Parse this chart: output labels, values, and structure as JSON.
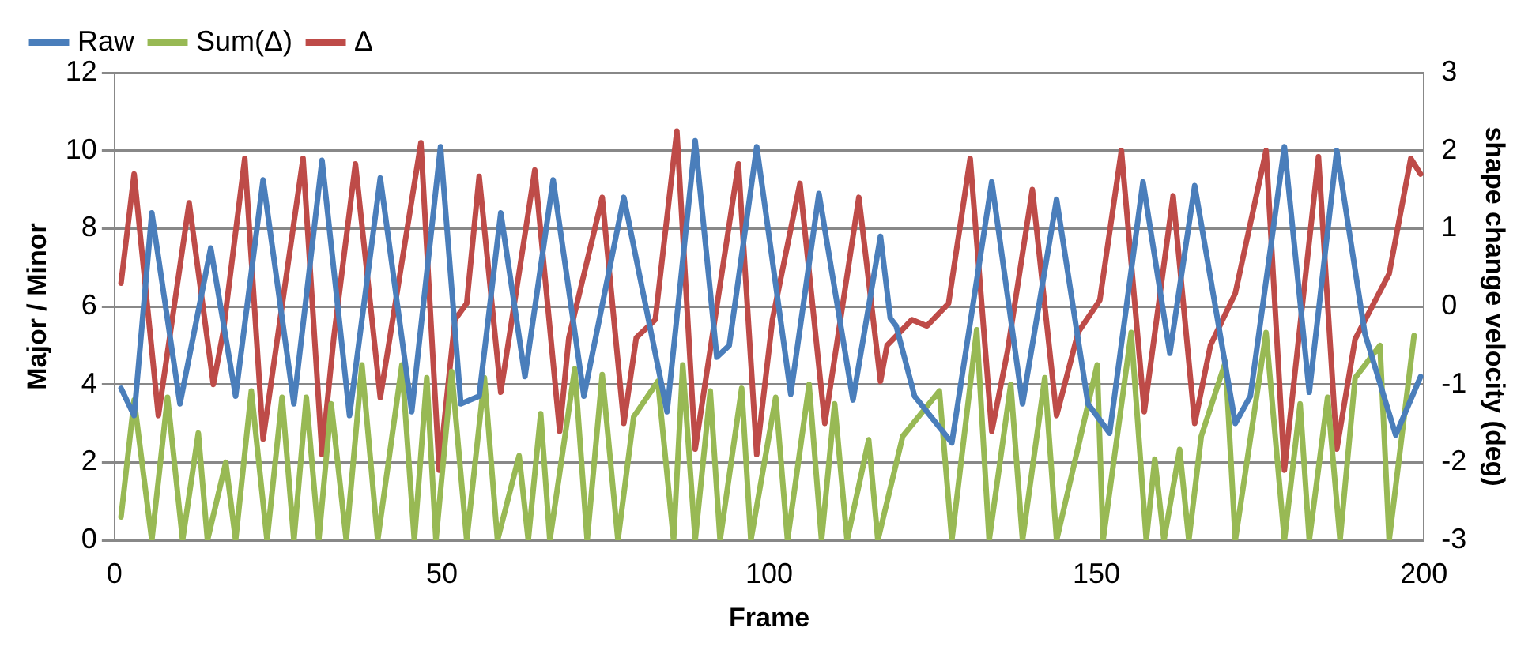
{
  "chart_data": {
    "type": "line",
    "xlabel": "Frame",
    "ylabel": "Major / Minor",
    "y2label": "shape change velocity (deg)",
    "xlim": [
      0,
      200
    ],
    "xticks": [
      0,
      50,
      100,
      150,
      200
    ],
    "ylim": [
      0,
      12
    ],
    "yticks": [
      0,
      2,
      4,
      6,
      8,
      10,
      12
    ],
    "y2lim": [
      -3,
      3
    ],
    "y2ticks": [
      -3,
      -2,
      -1,
      0,
      1,
      2,
      3
    ],
    "grid": "y",
    "legend": "top left",
    "marker": "none",
    "line_style": "solid",
    "series": [
      {
        "name": "Raw",
        "color": "#4a7ebb",
        "x": [
          1,
          3,
          5.7,
          10,
          14.7,
          18.5,
          22.7,
          27.4,
          31.7,
          35.9,
          40.6,
          45.4,
          49.8,
          52.9,
          55.7,
          59,
          62.7,
          67,
          71.7,
          77.8,
          84.4,
          88.7,
          92,
          93.9,
          98.1,
          103.3,
          107.6,
          112.8,
          117,
          118.5,
          119.4,
          122.2,
          127.9,
          134,
          138.7,
          143.9,
          148.7,
          152,
          157.1,
          161.2,
          165,
          171.2,
          173.5,
          178.7,
          182.5,
          186.7,
          191,
          195.7,
          199.5
        ],
        "values": [
          3.9,
          3.2,
          8.4,
          3.5,
          7.5,
          3.7,
          9.25,
          3.5,
          9.75,
          3.2,
          9.3,
          3.3,
          10.1,
          3.5,
          3.7,
          8.4,
          4.2,
          9.25,
          3.7,
          8.8,
          3.3,
          10.25,
          4.7,
          5,
          10.1,
          3.75,
          8.9,
          3.6,
          7.8,
          5.7,
          5.5,
          3.7,
          2.5,
          9.2,
          3.5,
          8.75,
          3.5,
          2.75,
          9.2,
          4.8,
          9.1,
          3,
          3.7,
          10.1,
          3.8,
          10,
          5.3,
          2.7,
          4.2
        ]
      },
      {
        "name": "Sum(Δ)",
        "color": "#98b954",
        "x": [
          1,
          3,
          5.7,
          8.1,
          10.4,
          12.8,
          14.2,
          17,
          18.5,
          20.9,
          23.3,
          25.6,
          27.4,
          29.3,
          31.2,
          33.1,
          35.4,
          37.8,
          40.2,
          43.9,
          45.8,
          47.7,
          49.1,
          51.5,
          53.8,
          56.5,
          58.5,
          61.8,
          63.2,
          65.1,
          66.5,
          70.3,
          72.2,
          74.5,
          76.9,
          79.3,
          83,
          85.4,
          86.8,
          88.7,
          91,
          92.5,
          95.8,
          97.2,
          101,
          102.8,
          106.1,
          108,
          110,
          111.9,
          115.2,
          116.6,
          120.4,
          126,
          127.9,
          131.7,
          133.6,
          136.9,
          138.7,
          142.1,
          143.9,
          150.1,
          151,
          155.3,
          157.6,
          158.9,
          160.3,
          162.7,
          164.1,
          166,
          169.7,
          171.2,
          175.9,
          178.7,
          181.1,
          182.5,
          185.3,
          187.2,
          189.5,
          193.3,
          194.7,
          198.5
        ],
        "values": [
          0.6,
          3.6,
          0,
          3.67,
          0,
          2.75,
          0,
          2,
          0,
          3.83,
          0,
          3.67,
          0,
          3.67,
          0,
          3.5,
          0,
          4.5,
          0,
          4.5,
          0,
          4.17,
          0,
          4.33,
          0,
          4.17,
          0,
          2.17,
          0,
          3.25,
          0,
          4.4,
          0,
          4.25,
          0,
          3.17,
          4.08,
          0,
          4.5,
          0,
          3.83,
          0,
          3.9,
          0,
          3.67,
          0,
          4,
          0,
          3.5,
          0,
          2.58,
          0,
          2.67,
          3.83,
          0,
          5.4,
          0,
          4,
          0,
          4.17,
          0,
          4.5,
          0,
          5.33,
          0,
          2.08,
          0,
          2.33,
          0,
          2.67,
          4.58,
          0,
          5.33,
          0,
          3.5,
          0,
          3.67,
          0,
          4.17,
          5,
          0,
          5.25
        ]
      },
      {
        "name": "Δ",
        "color": "#be4b48",
        "axis": "y2",
        "x": [
          1,
          3,
          6.7,
          11.4,
          15.1,
          16.6,
          19.9,
          22.7,
          28.8,
          31.7,
          33.5,
          36.8,
          40.6,
          46.8,
          49.6,
          52,
          53.8,
          55.7,
          59,
          64.2,
          68,
          69.4,
          74.5,
          77.8,
          79.7,
          82.6,
          85.9,
          88.7,
          95.3,
          98.1,
          100.5,
          104.7,
          108.5,
          113.7,
          117,
          118,
          121.8,
          124.1,
          127.4,
          130.7,
          134,
          136.4,
          140.2,
          143.9,
          147.2,
          150.5,
          153.8,
          157.3,
          161.7,
          165,
          167.4,
          171.2,
          175.9,
          178.7,
          183.9,
          186.7,
          189.5,
          194.7,
          198,
          199.5
        ],
        "values": [
          0.3,
          1.7,
          -1.4,
          1.33,
          -1,
          -0.33,
          1.9,
          -1.7,
          1.9,
          -1.9,
          -0.4,
          1.83,
          -1.17,
          2.1,
          -2.1,
          -0.17,
          0.04,
          1.67,
          -1.1,
          1.75,
          -1.6,
          -0.4,
          1.4,
          -1.5,
          -0.4,
          -0.17,
          2.25,
          -1.83,
          1.83,
          -1.9,
          -0.17,
          1.58,
          -1.5,
          1.4,
          -0.96,
          -0.5,
          -0.17,
          -0.25,
          0.04,
          1.9,
          -1.6,
          -0.58,
          1.5,
          -1.4,
          -0.33,
          0.08,
          2,
          -1.35,
          1.42,
          -1.5,
          -0.5,
          0.17,
          2,
          -2.1,
          1.92,
          -1.83,
          -0.42,
          0.42,
          1.9,
          1.7
        ]
      }
    ]
  }
}
